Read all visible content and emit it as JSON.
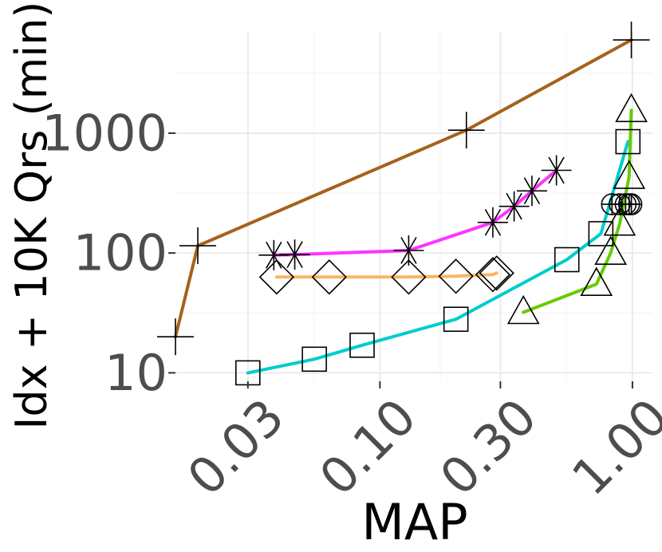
{
  "chart_data": {
    "type": "line",
    "xlabel": "MAP",
    "ylabel": "Idx + 10K Qrs (min)",
    "x_scale": "log",
    "y_scale": "log",
    "xlim": [
      0.0155,
      1.2
    ],
    "ylim": [
      8.5,
      7000
    ],
    "x_ticks": [
      0.03,
      0.1,
      0.3,
      1.0
    ],
    "x_tick_labels": [
      "0.03",
      "0.10",
      "0.30",
      "1.00"
    ],
    "y_ticks": [
      10,
      100,
      1000
    ],
    "y_tick_labels": [
      "10",
      "100",
      "1000"
    ],
    "grid": true,
    "legend": "none",
    "series": [
      {
        "color": "#a6611a",
        "marker": "plus",
        "points": [
          [
            0.0155,
            20
          ],
          [
            0.019,
            115
          ],
          [
            0.22,
            1060
          ],
          [
            0.99,
            6000
          ]
        ]
      },
      {
        "color": "#ff33ff",
        "marker": "asterisk",
        "points": [
          [
            0.038,
            96
          ],
          [
            0.046,
            97
          ],
          [
            0.13,
            105
          ],
          [
            0.28,
            180
          ],
          [
            0.34,
            245
          ],
          [
            0.4,
            330
          ],
          [
            0.5,
            490
          ]
        ]
      },
      {
        "color": "#fdb462",
        "marker": "diamond",
        "points": [
          [
            0.039,
            63
          ],
          [
            0.063,
            63
          ],
          [
            0.13,
            63
          ],
          [
            0.2,
            64
          ],
          [
            0.28,
            66
          ],
          [
            0.29,
            68
          ]
        ]
      },
      {
        "color": "#00cccc",
        "marker": "square",
        "points": [
          [
            0.03,
            10
          ],
          [
            0.055,
            13
          ],
          [
            0.085,
            17
          ],
          [
            0.2,
            28
          ],
          [
            0.55,
            88
          ],
          [
            0.75,
            145
          ],
          [
            0.96,
            850
          ]
        ]
      },
      {
        "color": "#66cc00",
        "marker": "triangle",
        "points": [
          [
            0.37,
            32
          ],
          [
            0.72,
            55
          ],
          [
            0.82,
            100
          ],
          [
            0.89,
            175
          ],
          [
            0.97,
            430
          ],
          [
            0.99,
            1550
          ]
        ]
      },
      {
        "color": "#000000",
        "marker": "circle-plus",
        "points": [
          [
            0.83,
            255
          ],
          [
            0.89,
            255
          ],
          [
            0.94,
            255
          ],
          [
            0.97,
            255
          ],
          [
            0.99,
            255
          ]
        ]
      }
    ]
  }
}
